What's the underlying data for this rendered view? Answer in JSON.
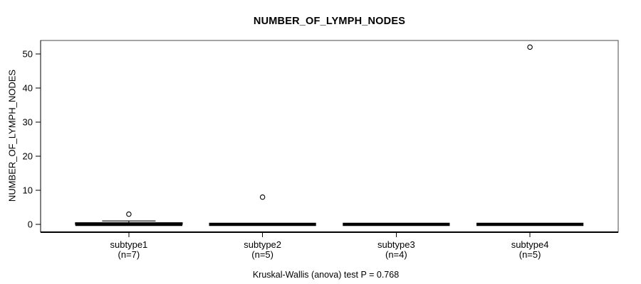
{
  "chart_data": {
    "type": "boxplot",
    "title": "NUMBER_OF_LYMPH_NODES",
    "ylabel": "NUMBER_OF_LYMPH_NODES",
    "xlabel": "",
    "footnote": "Kruskal-Wallis (anova) test P = 0.768",
    "stat_test": {
      "name": "Kruskal-Wallis (anova) test",
      "p_value": 0.768
    },
    "ylim": [
      0,
      50
    ],
    "yticks": [
      0,
      10,
      20,
      30,
      40,
      50
    ],
    "grid": false,
    "legend": "none",
    "categories": [
      "subtype1",
      "subtype2",
      "subtype3",
      "subtype4"
    ],
    "series": [
      {
        "label": "subtype1",
        "sublabel": "(n=7)",
        "n": 7,
        "q1": 0,
        "median": 0,
        "q3": 0.5,
        "whisker_low": 0,
        "whisker_high": 1,
        "outliers": [
          3
        ]
      },
      {
        "label": "subtype2",
        "sublabel": "(n=5)",
        "n": 5,
        "q1": 0,
        "median": 0,
        "q3": 0,
        "whisker_low": 0,
        "whisker_high": 0,
        "outliers": [
          8
        ]
      },
      {
        "label": "subtype3",
        "sublabel": "(n=4)",
        "n": 4,
        "q1": 0,
        "median": 0,
        "q3": 0,
        "whisker_low": 0,
        "whisker_high": 0,
        "outliers": []
      },
      {
        "label": "subtype4",
        "sublabel": "(n=5)",
        "n": 5,
        "q1": 0,
        "median": 0,
        "q3": 0,
        "whisker_low": 0,
        "whisker_high": 0,
        "outliers": [
          52
        ]
      }
    ],
    "colors": {
      "foreground": "#000000",
      "background": "#ffffff"
    }
  }
}
